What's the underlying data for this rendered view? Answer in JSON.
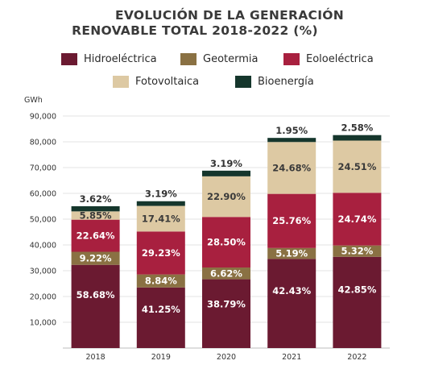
{
  "title_line1": "EVOLUCIÓN DE LA GENERACIÓN",
  "title_line2": "RENOVABLE TOTAL 2018-2022 (%)",
  "colors": {
    "hidro": "#6b1a31",
    "geo": "#8a7143",
    "eolo": "#a8203f",
    "foto": "#ddc9a3",
    "bio": "#15362c"
  },
  "chart_data": {
    "type": "bar",
    "stacked": true,
    "ylabel": "GWh",
    "ylim": [
      0,
      90000
    ],
    "yticks": [
      "10,000",
      "20,000",
      "30,000",
      "40,000",
      "50,000",
      "60,000",
      "70,000",
      "80,000",
      "90,000"
    ],
    "categories": [
      "2018",
      "2019",
      "2020",
      "2021",
      "2022"
    ],
    "totals_gwh": [
      55000,
      57000,
      68800,
      81500,
      82600
    ],
    "legend_position": "top",
    "series": [
      {
        "name": "Hidroeléctrica",
        "key": "hidro",
        "values": [
          58.68,
          41.25,
          38.79,
          42.43,
          42.85
        ],
        "labels": [
          "58.68%",
          "41.25%",
          "38.79%",
          "42.43%",
          "42.85%"
        ]
      },
      {
        "name": "Geotermia",
        "key": "geo",
        "values": [
          9.22,
          8.84,
          6.62,
          5.19,
          5.32
        ],
        "labels": [
          "9.22%",
          "8.84%",
          "6.62%",
          "5.19%",
          "5.32%"
        ]
      },
      {
        "name": "Eoloeléctrica",
        "key": "eolo",
        "values": [
          22.64,
          29.23,
          28.5,
          25.76,
          24.74
        ],
        "labels": [
          "22.64%",
          "29.23%",
          "28.50%",
          "25.76%",
          "24.74%"
        ]
      },
      {
        "name": "Fotovoltaica",
        "key": "foto",
        "values": [
          5.85,
          17.41,
          22.9,
          24.68,
          24.51
        ],
        "labels": [
          "5.85%",
          "17.41%",
          "22.90%",
          "24.68%",
          "24.51%"
        ]
      },
      {
        "name": "Bioenergía",
        "key": "bio",
        "values": [
          3.62,
          3.19,
          3.19,
          1.95,
          2.58
        ],
        "labels": [
          "3.62%",
          "3.19%",
          "3.19%",
          "1.95%",
          "2.58%"
        ]
      }
    ]
  }
}
